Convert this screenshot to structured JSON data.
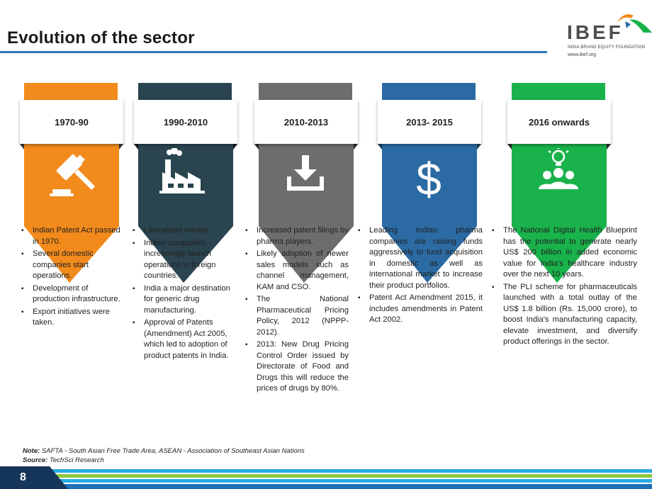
{
  "header": {
    "title": "Evolution of the sector",
    "logo_text": "IBEF",
    "logo_tagline": "INDIA BRAND EQUITY FOUNDATION",
    "logo_url": "www.ibef.org"
  },
  "colors": {
    "orange": "#f28a1c",
    "dark_teal": "#2a4450",
    "gray": "#6d6d6d",
    "blue": "#2b6aa3",
    "green": "#19b24b",
    "rule_blue": "#2e75b6"
  },
  "timeline": [
    {
      "period": "1970-90",
      "icon": "gavel-icon",
      "bullets": [
        "Indian Patent Act passed in 1970.",
        "Several domestic companies start operations.",
        "Development of production infrastructure.",
        "Export initiatives were taken."
      ]
    },
    {
      "period": "1990-2010",
      "icon": "factory-icon",
      "bullets": [
        "Liberalised market.",
        "Indian companies increasingly launch operations in foreign countries.",
        "India a major destination for generic drug manufacturing.",
        "Approval of Patents (Amendment) Act 2005, which led to adoption of product patents in India."
      ]
    },
    {
      "period": "2010-2013",
      "icon": "download-icon",
      "bullets": [
        "Increased patent filings by pharma players.",
        "Likely adoption of newer sales models such as channel management, KAM and CSO.",
        "The National Pharmaceutical Pricing Policy, 2012 (NPPP-2012).",
        "2013: New Drug Pricing Control Order issued by Directorate of Food and Drugs this will reduce the prices of drugs by 80%."
      ]
    },
    {
      "period": "2013- 2015",
      "icon": "dollar-icon",
      "bullets": [
        "Leading Indian pharma companies are raising funds aggressively to fund acquisition in domestic as well as international market to increase their product portfolios.",
        "Patent Act Amendment 2015, it includes amendments in Patent Act 2002."
      ]
    },
    {
      "period": "2016 onwards",
      "icon": "team-idea-icon",
      "bullets": [
        "The National Digital Health Blueprint has the potential to generate nearly US$ 200 billion in added economic value for India's healthcare industry over the next 10 years.",
        "The PLI scheme for pharmaceuticals launched with a total outlay of the US$ 1.8 billion (Rs. 15,000 crore), to boost India's manufacturing capacity, elevate investment, and diversify product offerings in the sector."
      ]
    }
  ],
  "footer": {
    "note_label": "Note:",
    "note_text": " SAFTA - South Asian Free Trade Area, ASEAN - Association of Southeast Asian Nations",
    "source_label": "Source:",
    "source_text": " TechSci Research",
    "page_number": "8"
  }
}
